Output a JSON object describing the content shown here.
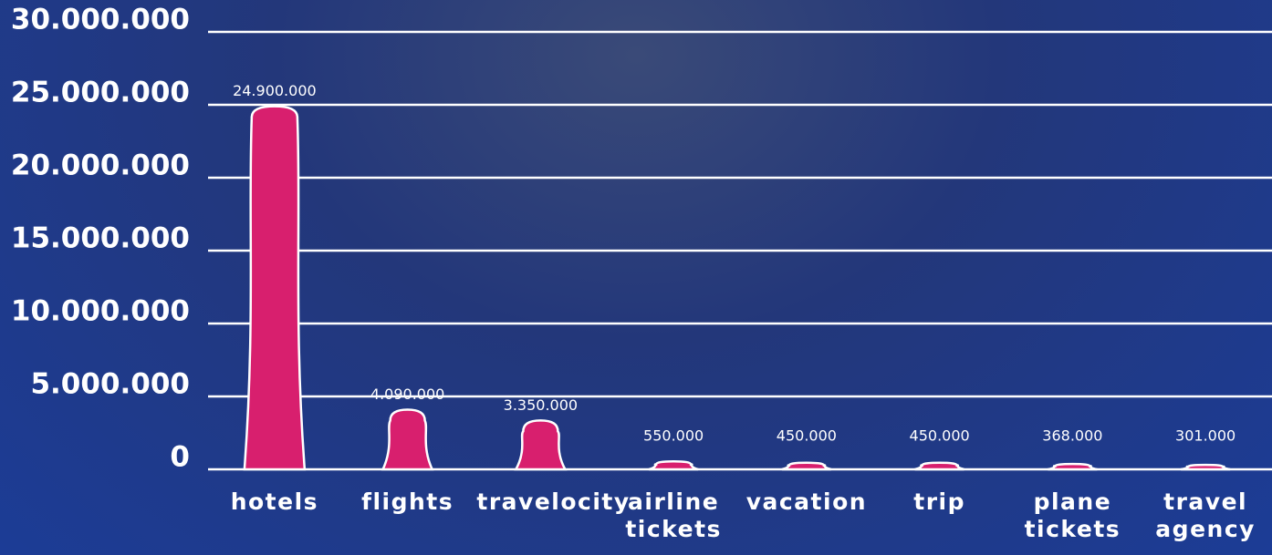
{
  "chart_data": {
    "type": "bar",
    "categories": [
      "hotels",
      "flights",
      "travelocity",
      "airline tickets",
      "vacation",
      "trip",
      "plane tickets",
      "travel agency"
    ],
    "values": [
      24900000,
      4090000,
      3350000,
      550000,
      450000,
      450000,
      368000,
      301000
    ],
    "value_labels": [
      "24.900.000",
      "4.090.000",
      "3.350.000",
      "550.000",
      "450.000",
      "450.000",
      "368.000",
      "301.000"
    ],
    "color": "#d81f6e",
    "ylim": [
      0,
      30000000
    ],
    "yticks": [
      0,
      {
        "value": 5000000,
        "label": "5.000.000"
      },
      {
        "value": 10000000,
        "label": "10.000.000"
      },
      {
        "value": 15000000,
        "label": "15.000.000"
      },
      {
        "value": 20000000,
        "label": "20.000.000"
      },
      {
        "value": 25000000,
        "label": "25.000.000"
      },
      {
        "value": 30000000,
        "label": "30.000.000"
      }
    ],
    "grid": true
  }
}
